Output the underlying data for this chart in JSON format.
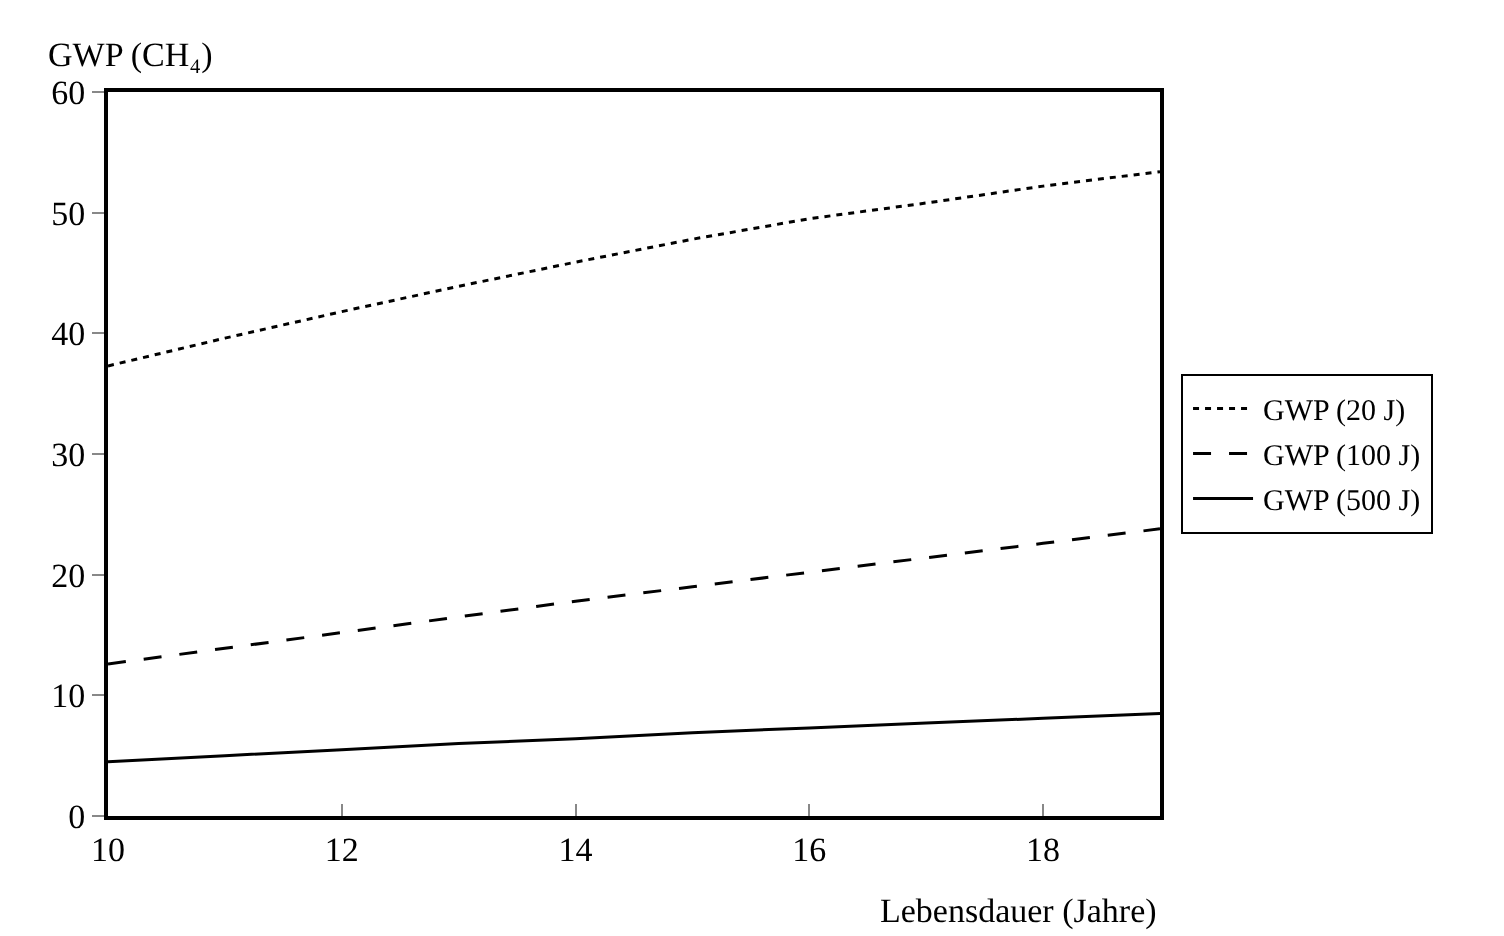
{
  "chart_data": {
    "type": "line",
    "ylabel": "GWP (CH₄)",
    "xlabel": "Lebensdauer (Jahre)",
    "x": [
      10,
      11,
      12,
      13,
      14,
      15,
      16,
      17,
      18,
      19
    ],
    "xlim": [
      10,
      19
    ],
    "xticks": [
      10,
      12,
      14,
      16,
      18
    ],
    "ylim": [
      0,
      60
    ],
    "yticks": [
      0,
      10,
      20,
      30,
      40,
      50,
      60
    ],
    "grid": false,
    "legend": "right",
    "marker": "none",
    "series": [
      {
        "name": "GWP (20 J)",
        "color": "#000000",
        "line_style": "dotted",
        "values": [
          37.3,
          39.6,
          41.8,
          43.9,
          45.9,
          47.8,
          49.5,
          50.8,
          52.2,
          53.4
        ]
      },
      {
        "name": "GWP (100 J)",
        "color": "#000000",
        "line_style": "dashed",
        "values": [
          12.6,
          13.9,
          15.2,
          16.5,
          17.8,
          19.0,
          20.2,
          21.4,
          22.6,
          23.8
        ]
      },
      {
        "name": "GWP (500 J)",
        "color": "#000000",
        "line_style": "solid",
        "values": [
          4.5,
          5.0,
          5.5,
          6.0,
          6.4,
          6.9,
          7.3,
          7.7,
          8.1,
          8.5
        ]
      }
    ]
  }
}
